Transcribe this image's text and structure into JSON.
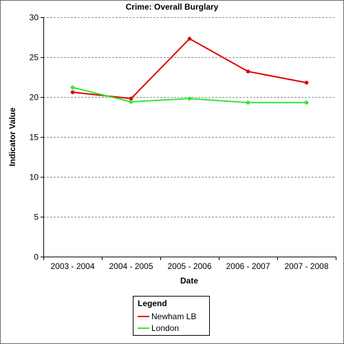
{
  "chart_data": {
    "type": "line",
    "title": "Crime: Overall Burglary",
    "xlabel": "Date",
    "ylabel": "Indicator Value",
    "categories": [
      "2003 - 2004",
      "2004 - 2005",
      "2005 - 2006",
      "2006 - 2007",
      "2007 - 2008"
    ],
    "ylim": [
      0,
      30
    ],
    "yticks": [
      0,
      5,
      10,
      15,
      20,
      25,
      30
    ],
    "grid": true,
    "legend": {
      "title": "Legend",
      "placement": "bottom"
    },
    "series": [
      {
        "name": "Newham LB",
        "color": "#e00000",
        "values": [
          20.6,
          19.8,
          27.3,
          23.2,
          21.8
        ]
      },
      {
        "name": "London",
        "color": "#33e633",
        "values": [
          21.2,
          19.4,
          19.8,
          19.3,
          19.3
        ]
      }
    ]
  }
}
